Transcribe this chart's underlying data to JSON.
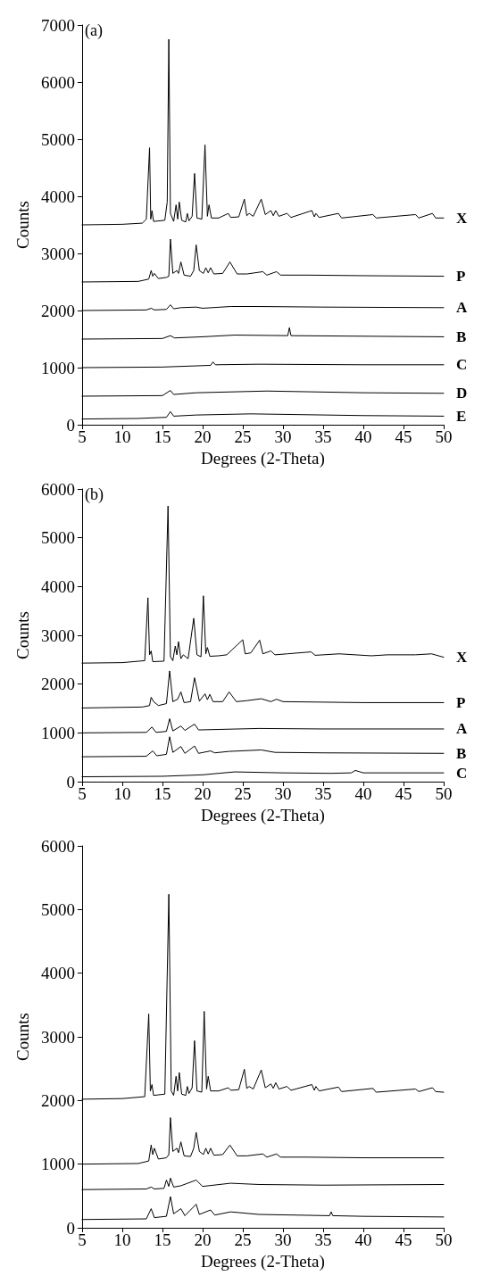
{
  "chart_data": [
    {
      "type": "line",
      "title": "(a)",
      "xlabel": "Degrees (2-Theta)",
      "ylabel": "Counts",
      "xlim": [
        5,
        50
      ],
      "xticks": [
        5,
        10,
        15,
        20,
        25,
        30,
        35,
        40,
        45,
        50
      ],
      "ylim": [
        0,
        7000
      ],
      "yticks": [
        0,
        1000,
        2000,
        3000,
        4000,
        5000,
        6000,
        7000
      ],
      "marker": "none",
      "line_style": "solid",
      "series": [
        {
          "name": "X",
          "color": "#000000",
          "x": [
            5,
            10,
            12.5,
            13.0,
            13.4,
            13.55,
            13.7,
            13.9,
            15.3,
            15.6,
            15.8,
            16.0,
            16.4,
            16.7,
            16.9,
            17.1,
            17.4,
            17.9,
            18.1,
            18.3,
            18.7,
            19.0,
            19.3,
            19.9,
            20.3,
            20.6,
            20.8,
            21.1,
            22,
            23.2,
            23.5,
            24.5,
            25.2,
            25.5,
            25.8,
            26.3,
            27.3,
            27.8,
            28.5,
            28.8,
            29.1,
            29.5,
            30.5,
            31,
            33.6,
            33.9,
            34.1,
            34.5,
            36.9,
            37.3,
            41.2,
            41.6,
            46.5,
            46.9,
            48.6,
            49,
            50
          ],
          "values": [
            3500,
            3510,
            3530,
            3600,
            4850,
            3600,
            3750,
            3560,
            3580,
            3900,
            6750,
            3700,
            3560,
            3850,
            3600,
            3900,
            3580,
            3550,
            3700,
            3570,
            3650,
            4400,
            3620,
            3600,
            4900,
            3650,
            3850,
            3620,
            3620,
            3700,
            3630,
            3640,
            3950,
            3660,
            3700,
            3650,
            3950,
            3680,
            3750,
            3660,
            3750,
            3650,
            3700,
            3630,
            3750,
            3640,
            3700,
            3630,
            3700,
            3620,
            3680,
            3620,
            3680,
            3620,
            3700,
            3620,
            3620
          ]
        },
        {
          "name": "P",
          "color": "#000000",
          "x": [
            5,
            12,
            13.3,
            13.6,
            13.8,
            14.0,
            14.5,
            15.5,
            15.8,
            16.0,
            16.3,
            16.8,
            17.0,
            17.3,
            17.7,
            18.5,
            18.9,
            19.2,
            19.6,
            20.1,
            20.4,
            20.7,
            21.0,
            21.4,
            22.5,
            23.4,
            24.3,
            25.5,
            27.5,
            28,
            29.2,
            29.7,
            33,
            40,
            50
          ],
          "values": [
            2500,
            2510,
            2550,
            2700,
            2600,
            2650,
            2560,
            2580,
            2600,
            3250,
            2650,
            2700,
            2650,
            2850,
            2620,
            2600,
            2700,
            3150,
            2700,
            2650,
            2750,
            2660,
            2750,
            2640,
            2650,
            2850,
            2640,
            2640,
            2680,
            2620,
            2680,
            2620,
            2620,
            2610,
            2600
          ]
        },
        {
          "name": "A",
          "color": "#000000",
          "x": [
            5,
            13,
            13.6,
            14,
            15.5,
            16,
            16.4,
            17.3,
            19.2,
            20,
            23.5,
            27,
            35,
            50
          ],
          "values": [
            2000,
            2010,
            2040,
            2010,
            2020,
            2100,
            2030,
            2050,
            2060,
            2040,
            2070,
            2070,
            2060,
            2050
          ]
        },
        {
          "name": "B",
          "color": "#000000",
          "x": [
            5,
            15,
            16,
            16.5,
            20,
            24,
            30.6,
            30.8,
            31,
            40,
            50
          ],
          "values": [
            1500,
            1510,
            1560,
            1520,
            1540,
            1570,
            1560,
            1700,
            1560,
            1550,
            1540
          ]
        },
        {
          "name": "C",
          "color": "#000000",
          "x": [
            5,
            15,
            21,
            21.3,
            21.6,
            27,
            40,
            50
          ],
          "values": [
            1000,
            1010,
            1040,
            1100,
            1050,
            1060,
            1050,
            1050
          ]
        },
        {
          "name": "D",
          "color": "#000000",
          "x": [
            5,
            15,
            16,
            16.4,
            19.2,
            28,
            40,
            50
          ],
          "values": [
            500,
            510,
            600,
            530,
            560,
            590,
            560,
            550
          ]
        },
        {
          "name": "E",
          "color": "#000000",
          "x": [
            5,
            12,
            15.5,
            16,
            16.4,
            19.2,
            26,
            40,
            50
          ],
          "values": [
            100,
            110,
            130,
            230,
            150,
            170,
            190,
            160,
            150
          ]
        }
      ]
    },
    {
      "type": "line",
      "title": "(b)",
      "xlabel": "Degrees (2-Theta)",
      "ylabel": "Counts",
      "xlim": [
        5,
        50
      ],
      "xticks": [
        5,
        10,
        15,
        20,
        25,
        30,
        35,
        40,
        45,
        50
      ],
      "ylim": [
        0,
        6000
      ],
      "yticks": [
        0,
        1000,
        2000,
        3000,
        4000,
        5000,
        6000
      ],
      "marker": "none",
      "line_style": "solid",
      "series": [
        {
          "name": "X",
          "color": "#000000",
          "x": [
            5,
            10,
            12.8,
            13.2,
            13.4,
            13.6,
            13.8,
            15.2,
            15.7,
            16.0,
            16.3,
            16.6,
            16.8,
            17.0,
            17.3,
            17.6,
            18.2,
            18.9,
            19.3,
            19.8,
            20.1,
            20.4,
            20.6,
            20.9,
            22,
            23,
            25.0,
            25.3,
            26,
            27.1,
            27.5,
            28.5,
            29,
            30.5,
            33.5,
            34,
            37,
            41,
            43,
            46.5,
            48.5,
            50
          ],
          "values": [
            2430,
            2440,
            2480,
            3770,
            2600,
            2680,
            2460,
            2470,
            5650,
            2560,
            2480,
            2780,
            2600,
            2870,
            2520,
            2600,
            2520,
            3350,
            2600,
            2560,
            3810,
            2620,
            2750,
            2570,
            2580,
            2600,
            2910,
            2620,
            2640,
            2900,
            2620,
            2680,
            2600,
            2620,
            2660,
            2590,
            2620,
            2580,
            2600,
            2600,
            2620,
            2550
          ]
        },
        {
          "name": "P",
          "color": "#000000",
          "x": [
            5,
            12.5,
            13.4,
            13.6,
            13.9,
            14.5,
            15.5,
            15.9,
            16.3,
            16.9,
            17.3,
            17.7,
            18.5,
            19.0,
            19.6,
            20.3,
            20.6,
            20.9,
            21.3,
            22.5,
            23.3,
            24.2,
            25.5,
            27.3,
            28.5,
            29.2,
            30,
            35,
            40,
            50
          ],
          "values": [
            1510,
            1530,
            1560,
            1730,
            1640,
            1560,
            1600,
            2270,
            1640,
            1690,
            1840,
            1620,
            1640,
            2130,
            1650,
            1800,
            1680,
            1790,
            1640,
            1640,
            1840,
            1640,
            1660,
            1700,
            1640,
            1690,
            1640,
            1630,
            1620,
            1620
          ]
        },
        {
          "name": "A",
          "color": "#000000",
          "x": [
            5,
            13,
            13.7,
            14.2,
            15.5,
            15.9,
            16.3,
            17.3,
            17.8,
            19.0,
            19.5,
            22,
            27,
            35,
            50
          ],
          "values": [
            1000,
            1010,
            1120,
            1010,
            1030,
            1290,
            1040,
            1140,
            1050,
            1180,
            1060,
            1070,
            1090,
            1080,
            1080
          ]
        },
        {
          "name": "B",
          "color": "#000000",
          "x": [
            5,
            13,
            13.8,
            14.3,
            15.5,
            15.9,
            16.3,
            17.3,
            17.8,
            19.0,
            19.5,
            21,
            21.5,
            23.3,
            27.3,
            29,
            35,
            50
          ],
          "values": [
            510,
            520,
            630,
            530,
            560,
            920,
            600,
            720,
            580,
            730,
            580,
            630,
            590,
            620,
            650,
            600,
            590,
            580
          ]
        },
        {
          "name": "C",
          "color": "#000000",
          "x": [
            5,
            15,
            20,
            24,
            30,
            36,
            38.5,
            39,
            40,
            50
          ],
          "values": [
            100,
            110,
            140,
            200,
            180,
            170,
            180,
            230,
            180,
            180
          ]
        }
      ]
    },
    {
      "type": "line",
      "xlabel": "Degrees (2-Theta)",
      "ylabel": "Counts",
      "xlim": [
        5,
        50
      ],
      "xticks": [
        5,
        10,
        15,
        20,
        25,
        30,
        35,
        40,
        45,
        50
      ],
      "ylim": [
        0,
        6000
      ],
      "yticks": [
        0,
        1000,
        2000,
        3000,
        4000,
        5000,
        6000
      ],
      "marker": "none",
      "line_style": "solid",
      "series": [
        {
          "color": "#000000",
          "x": [
            5,
            10,
            12.8,
            13.3,
            13.5,
            13.7,
            13.9,
            15.3,
            15.8,
            16.1,
            16.4,
            16.7,
            16.9,
            17.1,
            17.4,
            17.9,
            18.1,
            18.3,
            18.7,
            19.0,
            19.3,
            19.9,
            20.2,
            20.5,
            20.7,
            21.0,
            22,
            23.2,
            23.5,
            24.5,
            25.2,
            25.5,
            25.8,
            26.3,
            27.3,
            27.8,
            28.5,
            28.8,
            29.1,
            29.5,
            30.5,
            31,
            33.6,
            33.9,
            34.1,
            34.5,
            36.9,
            37.3,
            41.2,
            41.6,
            46.5,
            46.9,
            48.6,
            49,
            50
          ],
          "values": [
            2020,
            2030,
            2060,
            3360,
            2150,
            2250,
            2080,
            2100,
            5240,
            2150,
            2080,
            2380,
            2150,
            2440,
            2100,
            2080,
            2220,
            2110,
            2200,
            2940,
            2150,
            2130,
            3400,
            2180,
            2380,
            2150,
            2150,
            2200,
            2160,
            2170,
            2490,
            2190,
            2220,
            2180,
            2480,
            2200,
            2260,
            2190,
            2280,
            2180,
            2220,
            2160,
            2250,
            2160,
            2220,
            2150,
            2210,
            2140,
            2190,
            2130,
            2180,
            2140,
            2200,
            2140,
            2130
          ]
        },
        {
          "color": "#000000",
          "x": [
            5,
            12,
            13.3,
            13.6,
            13.8,
            14.0,
            14.5,
            15.5,
            15.8,
            16.0,
            16.3,
            16.8,
            17.0,
            17.3,
            17.7,
            18.5,
            18.9,
            19.2,
            19.6,
            20.1,
            20.4,
            20.7,
            21.0,
            21.4,
            22.5,
            23.4,
            24.3,
            25.5,
            27.5,
            28,
            29.2,
            29.7,
            33,
            40,
            50
          ],
          "values": [
            1000,
            1010,
            1050,
            1300,
            1150,
            1250,
            1080,
            1100,
            1150,
            1730,
            1200,
            1250,
            1180,
            1350,
            1130,
            1120,
            1250,
            1500,
            1200,
            1150,
            1250,
            1160,
            1250,
            1140,
            1150,
            1300,
            1130,
            1130,
            1160,
            1110,
            1160,
            1110,
            1110,
            1100,
            1100
          ]
        },
        {
          "color": "#000000",
          "x": [
            5,
            13,
            13.6,
            14,
            15.2,
            15.5,
            15.8,
            16,
            16.4,
            17.3,
            19.2,
            20,
            23.5,
            27,
            35,
            50
          ],
          "values": [
            600,
            610,
            640,
            610,
            620,
            750,
            650,
            780,
            640,
            660,
            750,
            650,
            700,
            680,
            670,
            680
          ]
        },
        {
          "color": "#000000",
          "x": [
            5,
            13,
            13.6,
            14,
            15.5,
            16,
            16.4,
            17.3,
            17.8,
            19.2,
            19.6,
            21,
            21.5,
            23.5,
            27,
            35.8,
            36,
            36.2,
            40,
            50
          ],
          "values": [
            130,
            140,
            300,
            160,
            180,
            490,
            220,
            300,
            190,
            370,
            210,
            280,
            200,
            250,
            210,
            190,
            250,
            190,
            180,
            170
          ]
        }
      ]
    }
  ]
}
